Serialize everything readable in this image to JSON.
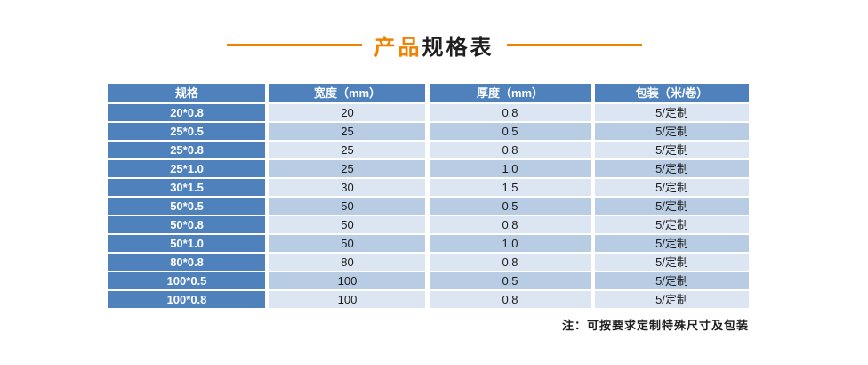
{
  "title": {
    "highlight": "产品",
    "rest": "规格表"
  },
  "table": {
    "headers": [
      "规格",
      "宽度（mm）",
      "厚度（mm）",
      "包装（米/卷）"
    ],
    "rows": [
      {
        "spec": "20*0.8",
        "width": "20",
        "thickness": "0.8",
        "packing": "5/定制"
      },
      {
        "spec": "25*0.5",
        "width": "25",
        "thickness": "0.5",
        "packing": "5/定制"
      },
      {
        "spec": "25*0.8",
        "width": "25",
        "thickness": "0.8",
        "packing": "5/定制"
      },
      {
        "spec": "25*1.0",
        "width": "25",
        "thickness": "1.0",
        "packing": "5/定制"
      },
      {
        "spec": "30*1.5",
        "width": "30",
        "thickness": "1.5",
        "packing": "5/定制"
      },
      {
        "spec": "50*0.5",
        "width": "50",
        "thickness": "0.5",
        "packing": "5/定制"
      },
      {
        "spec": "50*0.8",
        "width": "50",
        "thickness": "0.8",
        "packing": "5/定制"
      },
      {
        "spec": "50*1.0",
        "width": "50",
        "thickness": "1.0",
        "packing": "5/定制"
      },
      {
        "spec": "80*0.8",
        "width": "80",
        "thickness": "0.8",
        "packing": "5/定制"
      },
      {
        "spec": "100*0.5",
        "width": "100",
        "thickness": "0.5",
        "packing": "5/定制"
      },
      {
        "spec": "100*0.8",
        "width": "100",
        "thickness": "0.8",
        "packing": "5/定制"
      }
    ]
  },
  "note": "注：可按要求定制特殊尺寸及包装",
  "colors": {
    "accent_orange": "#ef8200",
    "header_blue": "#4f81bd",
    "row_light": "#dce6f2",
    "row_dark": "#b8cce4"
  }
}
